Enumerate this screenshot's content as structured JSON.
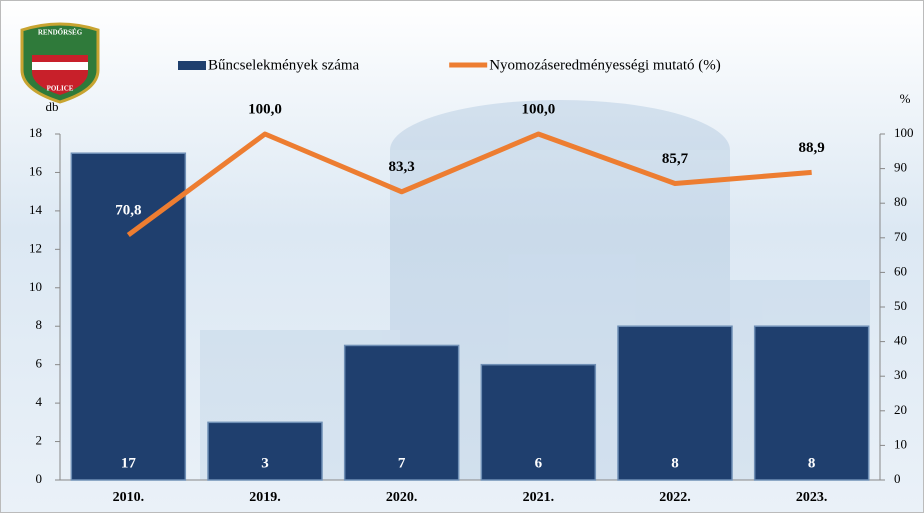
{
  "logo_text": [
    "RENDŐRSÉG",
    "POLICE"
  ],
  "chart_data": {
    "type": "bar_line",
    "categories": [
      "2010.",
      "2019.",
      "2020.",
      "2021.",
      "2022.",
      "2023."
    ],
    "series": [
      {
        "name": "Bűncselekmények száma",
        "type": "bar",
        "color": "#1f3f6e",
        "values": [
          17,
          3,
          7,
          6,
          8,
          8
        ]
      },
      {
        "name": "Nyomozáseredményességi mutató (%)",
        "type": "line",
        "axis": "y2",
        "color": "#ed7d31",
        "values": [
          70.8,
          100,
          83.3,
          100,
          85.7,
          88.9
        ],
        "value_labels": [
          "70,8",
          "100,0",
          "83,3",
          "100,0",
          "85,7",
          "88,9"
        ]
      }
    ],
    "y_label": "db",
    "y2_label": "%",
    "ylim": [
      0,
      18
    ],
    "yticks": [
      0,
      2,
      4,
      6,
      8,
      10,
      12,
      14,
      16,
      18
    ],
    "y2lim": [
      0,
      100
    ],
    "y2ticks": [
      0,
      10,
      20,
      30,
      40,
      50,
      60,
      70,
      80,
      90,
      100
    ],
    "legend": "top"
  }
}
